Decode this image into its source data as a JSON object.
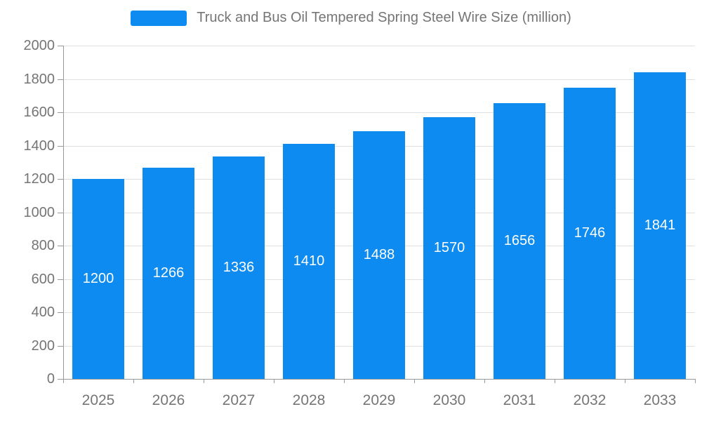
{
  "chart_data": {
    "type": "bar",
    "title": "Truck and Bus Oil Tempered Spring Steel Wire Size (million)",
    "categories": [
      "2025",
      "2026",
      "2027",
      "2028",
      "2029",
      "2030",
      "2031",
      "2032",
      "2033"
    ],
    "values": [
      1200,
      1266,
      1336,
      1410,
      1488,
      1570,
      1656,
      1746,
      1841
    ],
    "xlabel": "",
    "ylabel": "",
    "ylim": [
      0,
      2000
    ],
    "ytick_step": 200,
    "grid": true,
    "legend_position": "top-center",
    "bar_color": "#0d8bf0",
    "bar_label_color": "#ffffff",
    "axis_text_color": "#757575",
    "grid_color": "#e0e0e0",
    "axis_line_color": "#999999",
    "background_color": "#ffffff"
  }
}
